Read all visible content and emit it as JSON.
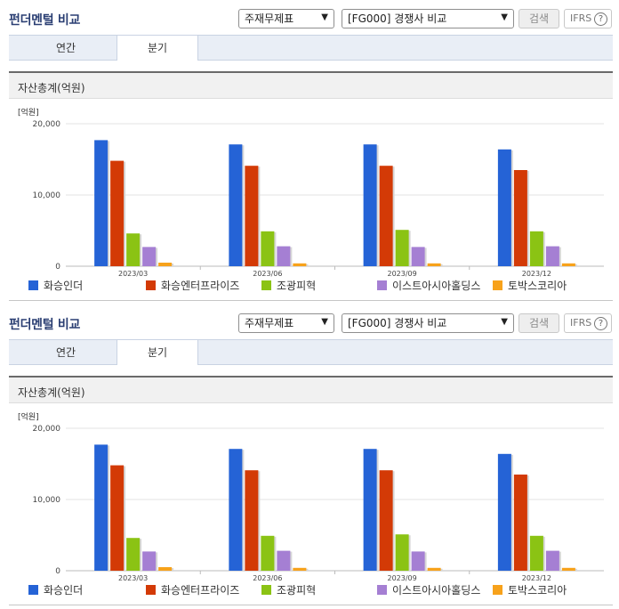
{
  "panels": [
    {
      "title": "펀더멘털 비교",
      "dropdown_type": "주재무제표",
      "dropdown_compare": "[FG000] 경쟁사 비교",
      "search_label": "검색",
      "ifrs_label": "IFRS",
      "help_glyph": "?",
      "tabs": [
        "연간",
        "분기"
      ],
      "active_tab": "분기",
      "chart_title": "자산총계(억원)"
    },
    {
      "title": "펀더멘털 비교",
      "dropdown_type": "주재무제표",
      "dropdown_compare": "[FG000] 경쟁사 비교",
      "search_label": "검색",
      "ifrs_label": "IFRS",
      "help_glyph": "?",
      "tabs": [
        "연간",
        "분기"
      ],
      "active_tab": "분기",
      "chart_title": "자산총계(억원)"
    }
  ],
  "icons": {
    "dropdown": "chevron-down-icon",
    "help": "question-circle-icon"
  },
  "chart_data": [
    {
      "type": "bar",
      "title": "자산총계(억원)",
      "unit_label": "[억원]",
      "categories": [
        "2023/03",
        "2023/06",
        "2023/09",
        "2023/12"
      ],
      "ylim": [
        0,
        20000
      ],
      "yticks": [
        "0",
        "10,000",
        "20,000"
      ],
      "grid": true,
      "legend": "bottom",
      "series": [
        {
          "name": "화승인더",
          "color": "#2563d6",
          "values": [
            17700,
            17100,
            17100,
            16400
          ]
        },
        {
          "name": "화승엔터프라이즈",
          "color": "#d33a06",
          "values": [
            14800,
            14100,
            14100,
            13500
          ]
        },
        {
          "name": "조광피혁",
          "color": "#8bc314",
          "values": [
            4600,
            4900,
            5100,
            4900
          ]
        },
        {
          "name": "이스트아시아홀딩스",
          "color": "#a57fd3",
          "values": [
            2700,
            2800,
            2700,
            2800
          ]
        },
        {
          "name": "토박스코리아",
          "color": "#f7a21b",
          "values": [
            500,
            400,
            400,
            400
          ]
        }
      ]
    },
    {
      "type": "bar",
      "title": "자산총계(억원)",
      "unit_label": "[억원]",
      "categories": [
        "2023/03",
        "2023/06",
        "2023/09",
        "2023/12"
      ],
      "ylim": [
        0,
        20000
      ],
      "yticks": [
        "0",
        "10,000",
        "20,000"
      ],
      "grid": true,
      "legend": "bottom",
      "series": [
        {
          "name": "화승인더",
          "color": "#2563d6",
          "values": [
            17700,
            17100,
            17100,
            16400
          ]
        },
        {
          "name": "화승엔터프라이즈",
          "color": "#d33a06",
          "values": [
            14800,
            14100,
            14100,
            13500
          ]
        },
        {
          "name": "조광피혁",
          "color": "#8bc314",
          "values": [
            4600,
            4900,
            5100,
            4900
          ]
        },
        {
          "name": "이스트아시아홀딩스",
          "color": "#a57fd3",
          "values": [
            2700,
            2800,
            2700,
            2800
          ]
        },
        {
          "name": "토박스코리아",
          "color": "#f7a21b",
          "values": [
            500,
            400,
            400,
            400
          ]
        }
      ]
    }
  ]
}
